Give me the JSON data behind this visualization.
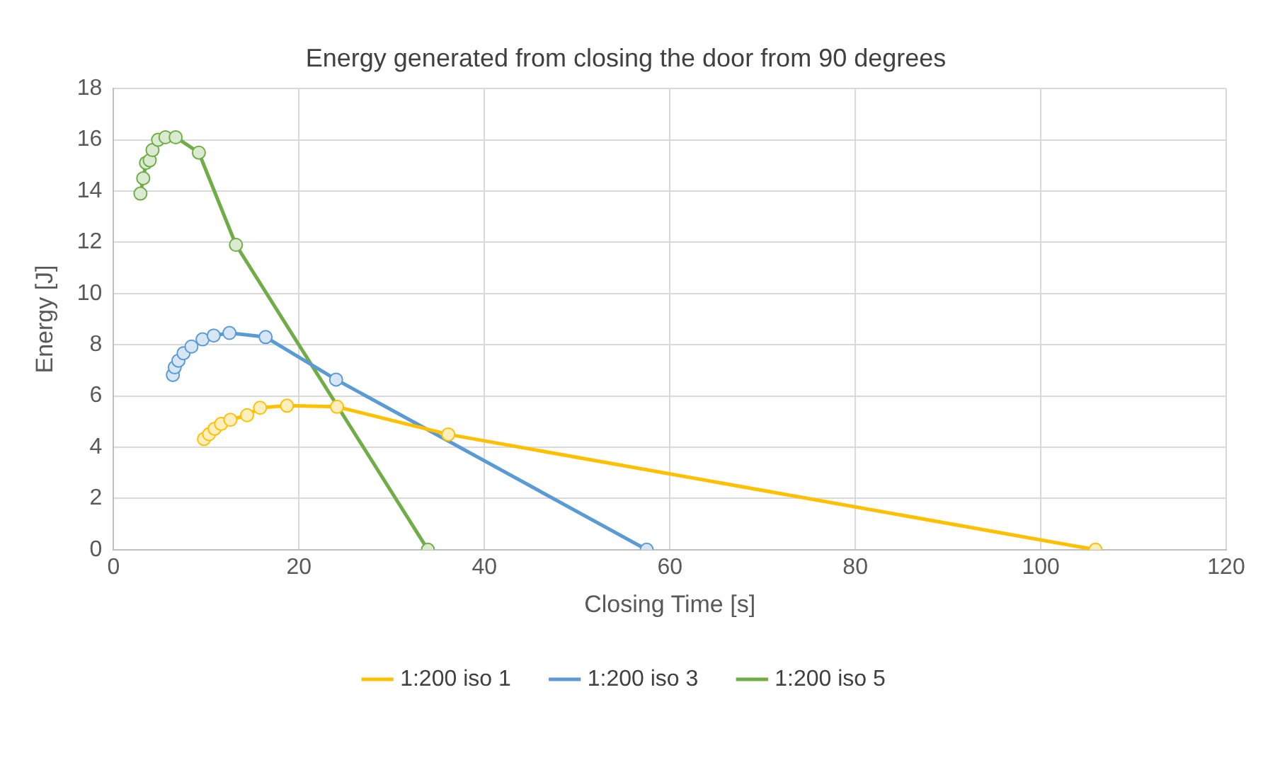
{
  "chart_data": {
    "type": "line",
    "title": "Energy generated from closing the door from 90 degrees",
    "xlabel": "Closing Time [s]",
    "ylabel": "Energy [J]",
    "xlim": [
      0,
      120
    ],
    "xticks": [
      0,
      20,
      40,
      60,
      80,
      100,
      120
    ],
    "ylim": [
      0,
      18
    ],
    "yticks": [
      0,
      2,
      4,
      6,
      8,
      10,
      12,
      14,
      16,
      18
    ],
    "grid": true,
    "legend": "bottom",
    "marker": "circle",
    "line_style": "solid",
    "series": [
      {
        "name": "1:200 iso 1",
        "color": "#ffc000",
        "x": [
          9.75,
          10.3,
          10.9,
          11.6,
          12.6,
          14.4,
          15.8,
          18.7,
          24.1,
          36.1,
          105.9
        ],
        "values": [
          4.32,
          4.51,
          4.72,
          4.91,
          5.07,
          5.25,
          5.54,
          5.62,
          5.58,
          4.5,
          0
        ]
      },
      {
        "name": "1:200 iso 3",
        "color": "#5b9bd5",
        "x": [
          6.4,
          6.6,
          7.0,
          7.55,
          8.4,
          9.6,
          10.8,
          12.5,
          16.4,
          24.0,
          57.5
        ],
        "values": [
          6.82,
          7.12,
          7.38,
          7.67,
          7.93,
          8.21,
          8.36,
          8.46,
          8.3,
          6.64,
          0
        ]
      },
      {
        "name": "1:200 iso 5",
        "color": "#70ad47",
        "x": [
          2.9,
          3.2,
          3.5,
          3.9,
          4.2,
          4.8,
          5.6,
          6.7,
          9.2,
          13.2,
          33.9
        ],
        "values": [
          13.9,
          14.5,
          15.1,
          15.2,
          15.6,
          16.0,
          16.1,
          16.1,
          15.5,
          11.9,
          0
        ]
      }
    ]
  }
}
